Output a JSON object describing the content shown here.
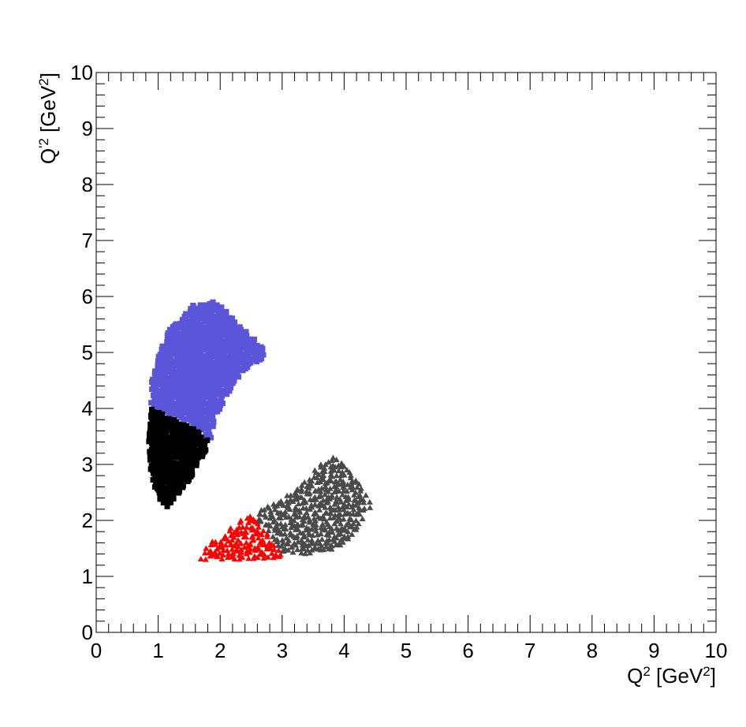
{
  "chart_data": {
    "type": "scatter",
    "xlabel": {
      "base": "Q",
      "sup": "2",
      "mid": " [GeV",
      "sup2": "2",
      "end": "]"
    },
    "ylabel": {
      "base": "Q",
      "sup": "'2",
      "mid": " [GeV",
      "sup2": "2",
      "end": "]"
    },
    "xlim": [
      0,
      10
    ],
    "ylim": [
      0,
      10
    ],
    "xticks": [
      "0",
      "1",
      "2",
      "3",
      "4",
      "5",
      "6",
      "7",
      "8",
      "9",
      "10"
    ],
    "yticks": [
      "0",
      "1",
      "2",
      "3",
      "4",
      "5",
      "6",
      "7",
      "8",
      "9",
      "10"
    ],
    "grid": false,
    "series": [
      {
        "marker": "square",
        "color": "#5a55d9",
        "region": [
          [
            0.87,
            4.1
          ],
          [
            0.9,
            4.55
          ],
          [
            1.0,
            4.9
          ],
          [
            1.1,
            5.3
          ],
          [
            1.3,
            5.55
          ],
          [
            1.55,
            5.85
          ],
          [
            1.85,
            5.92
          ],
          [
            2.05,
            5.8
          ],
          [
            2.3,
            5.5
          ],
          [
            2.55,
            5.25
          ],
          [
            2.75,
            5.05
          ],
          [
            2.7,
            4.85
          ],
          [
            2.5,
            4.8
          ],
          [
            2.35,
            4.65
          ],
          [
            2.15,
            4.3
          ],
          [
            1.95,
            3.9
          ],
          [
            1.85,
            3.45
          ],
          [
            1.55,
            3.7
          ],
          [
            1.25,
            3.85
          ],
          [
            1.0,
            3.95
          ]
        ]
      },
      {
        "marker": "square",
        "color": "#000000",
        "region": [
          [
            0.88,
            4.0
          ],
          [
            0.85,
            3.4
          ],
          [
            0.88,
            2.8
          ],
          [
            1.0,
            2.4
          ],
          [
            1.15,
            2.2
          ],
          [
            1.3,
            2.4
          ],
          [
            1.5,
            2.7
          ],
          [
            1.7,
            3.1
          ],
          [
            1.85,
            3.4
          ],
          [
            1.55,
            3.65
          ],
          [
            1.25,
            3.82
          ],
          [
            1.0,
            3.93
          ]
        ]
      },
      {
        "marker": "triangle",
        "color": "#ff0000",
        "region": [
          [
            1.6,
            1.3
          ],
          [
            2.2,
            1.3
          ],
          [
            3.0,
            1.33
          ],
          [
            2.95,
            1.48
          ],
          [
            2.8,
            1.7
          ],
          [
            2.65,
            1.92
          ],
          [
            2.55,
            2.1
          ],
          [
            2.35,
            2.02
          ],
          [
            2.1,
            1.82
          ],
          [
            1.85,
            1.6
          ],
          [
            1.7,
            1.45
          ]
        ]
      },
      {
        "marker": "triangle",
        "color": "#4a4a4a",
        "region": [
          [
            2.55,
            2.12
          ],
          [
            2.7,
            1.9
          ],
          [
            2.85,
            1.65
          ],
          [
            3.0,
            1.4
          ],
          [
            3.4,
            1.38
          ],
          [
            3.8,
            1.45
          ],
          [
            4.2,
            1.75
          ],
          [
            4.45,
            2.3
          ],
          [
            4.3,
            2.6
          ],
          [
            4.05,
            2.95
          ],
          [
            3.85,
            3.15
          ],
          [
            3.55,
            2.95
          ],
          [
            3.25,
            2.6
          ],
          [
            2.95,
            2.35
          ],
          [
            2.7,
            2.22
          ]
        ]
      }
    ]
  }
}
